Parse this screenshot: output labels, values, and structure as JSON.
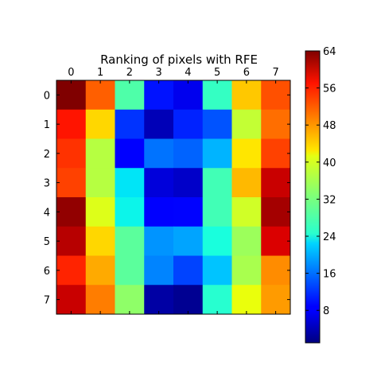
{
  "chart_data": {
    "type": "heatmap",
    "title": "Ranking of pixels with RFE",
    "xlabel": "",
    "ylabel": "",
    "x_ticks": [
      "0",
      "1",
      "2",
      "3",
      "4",
      "5",
      "6",
      "7"
    ],
    "y_ticks": [
      "0",
      "1",
      "2",
      "3",
      "4",
      "5",
      "6",
      "7"
    ],
    "x_tick_position": "top",
    "grid": false,
    "colormap": "jet",
    "value_range": [
      1,
      64
    ],
    "colorbar": {
      "position": "right",
      "ticks": [
        8,
        16,
        24,
        32,
        40,
        48,
        56,
        64
      ],
      "tick_labels": [
        "8",
        "16",
        "24",
        "32",
        "40",
        "48",
        "56",
        "64"
      ]
    },
    "values": [
      [
        64,
        52,
        29,
        10,
        7,
        27,
        45,
        53
      ],
      [
        57,
        44,
        12,
        4,
        11,
        14,
        38,
        51
      ],
      [
        55,
        37,
        8,
        16,
        15,
        20,
        43,
        54
      ],
      [
        54,
        37,
        23,
        6,
        5,
        28,
        46,
        60
      ],
      [
        63,
        40,
        24,
        8,
        9,
        28,
        39,
        62
      ],
      [
        61,
        44,
        30,
        18,
        19,
        25,
        35,
        59
      ],
      [
        56,
        47,
        30,
        17,
        13,
        21,
        36,
        49
      ],
      [
        60,
        50,
        34,
        3,
        2,
        26,
        41,
        48
      ]
    ]
  }
}
